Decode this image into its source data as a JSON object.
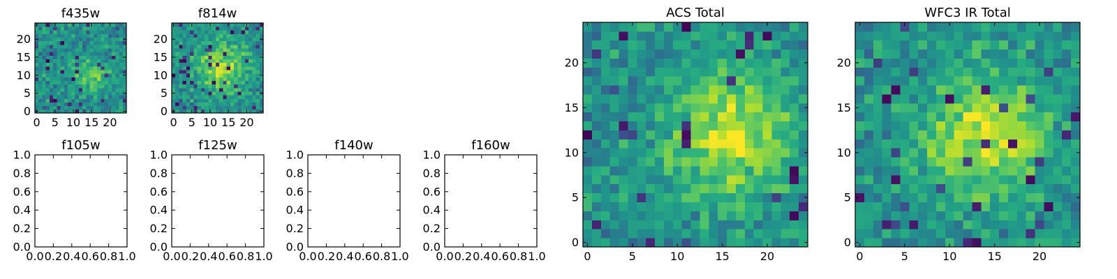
{
  "figure": {
    "colormap": "viridis",
    "frame_color": "#000000",
    "background": "#ffffff"
  },
  "chart_data": [
    {
      "type": "heatmap",
      "title": "f435w",
      "grid_size": 25,
      "xticks": [
        0,
        5,
        10,
        15,
        20
      ],
      "yticks": [
        0,
        5,
        10,
        15,
        20
      ],
      "xlim": [
        -0.5,
        24.5
      ],
      "ylim": [
        -0.5,
        24.5
      ],
      "has_image": true,
      "seed": 435,
      "low_fraction": 0.06,
      "blob": {
        "x": 15,
        "y": 10,
        "sigma": 3,
        "amp": 0.3
      }
    },
    {
      "type": "heatmap",
      "title": "f814w",
      "grid_size": 25,
      "xticks": [
        0,
        5,
        10,
        15,
        20
      ],
      "yticks": [
        0,
        5,
        10,
        15,
        20
      ],
      "xlim": [
        -0.5,
        24.5
      ],
      "ylim": [
        -0.5,
        24.5
      ],
      "has_image": true,
      "seed": 814,
      "low_fraction": 0.07,
      "blob": {
        "x": 13,
        "y": 12,
        "sigma": 5,
        "amp": 0.35
      }
    },
    {
      "type": "heatmap",
      "title": "f105w",
      "xticks": [
        "0.0",
        "0.2",
        "0.4",
        "0.6",
        "0.8",
        "1.0"
      ],
      "yticks": [
        "0.0",
        "0.2",
        "0.4",
        "0.6",
        "0.8",
        "1.0"
      ],
      "xlim": [
        0,
        1
      ],
      "ylim": [
        0,
        1
      ],
      "has_image": false
    },
    {
      "type": "heatmap",
      "title": "f125w",
      "xticks": [
        "0.0",
        "0.2",
        "0.4",
        "0.6",
        "0.8",
        "1.0"
      ],
      "yticks": [
        "0.0",
        "0.2",
        "0.4",
        "0.6",
        "0.8",
        "1.0"
      ],
      "xlim": [
        0,
        1
      ],
      "ylim": [
        0,
        1
      ],
      "has_image": false
    },
    {
      "type": "heatmap",
      "title": "f140w",
      "xticks": [
        "0.0",
        "0.2",
        "0.4",
        "0.6",
        "0.8",
        "1.0"
      ],
      "yticks": [
        "0.0",
        "0.2",
        "0.4",
        "0.6",
        "0.8",
        "1.0"
      ],
      "xlim": [
        0,
        1
      ],
      "ylim": [
        0,
        1
      ],
      "has_image": false
    },
    {
      "type": "heatmap",
      "title": "f160w",
      "xticks": [
        "0.0",
        "0.2",
        "0.4",
        "0.6",
        "0.8",
        "1.0"
      ],
      "yticks": [
        "0.0",
        "0.2",
        "0.4",
        "0.6",
        "0.8",
        "1.0"
      ],
      "xlim": [
        0,
        1
      ],
      "ylim": [
        0,
        1
      ],
      "has_image": false
    },
    {
      "type": "heatmap",
      "title": "ACS Total",
      "grid_size": 25,
      "xticks": [
        0,
        5,
        10,
        15,
        20
      ],
      "yticks": [
        0,
        5,
        10,
        15,
        20
      ],
      "xlim": [
        -0.5,
        24.5
      ],
      "ylim": [
        -0.5,
        24.5
      ],
      "has_image": true,
      "seed": 1001,
      "low_fraction": 0.05,
      "blob": {
        "x": 16,
        "y": 12,
        "sigma": 5,
        "amp": 0.4
      }
    },
    {
      "type": "heatmap",
      "title": "WFC3 IR Total",
      "grid_size": 25,
      "xticks": [
        0,
        5,
        10,
        15,
        20
      ],
      "yticks": [
        0,
        5,
        10,
        15,
        20
      ],
      "xlim": [
        -0.5,
        24.5
      ],
      "ylim": [
        -0.5,
        24.5
      ],
      "has_image": true,
      "seed": 3003,
      "low_fraction": 0.05,
      "blob": {
        "x": 14,
        "y": 12,
        "sigma": 5,
        "amp": 0.4
      }
    }
  ]
}
